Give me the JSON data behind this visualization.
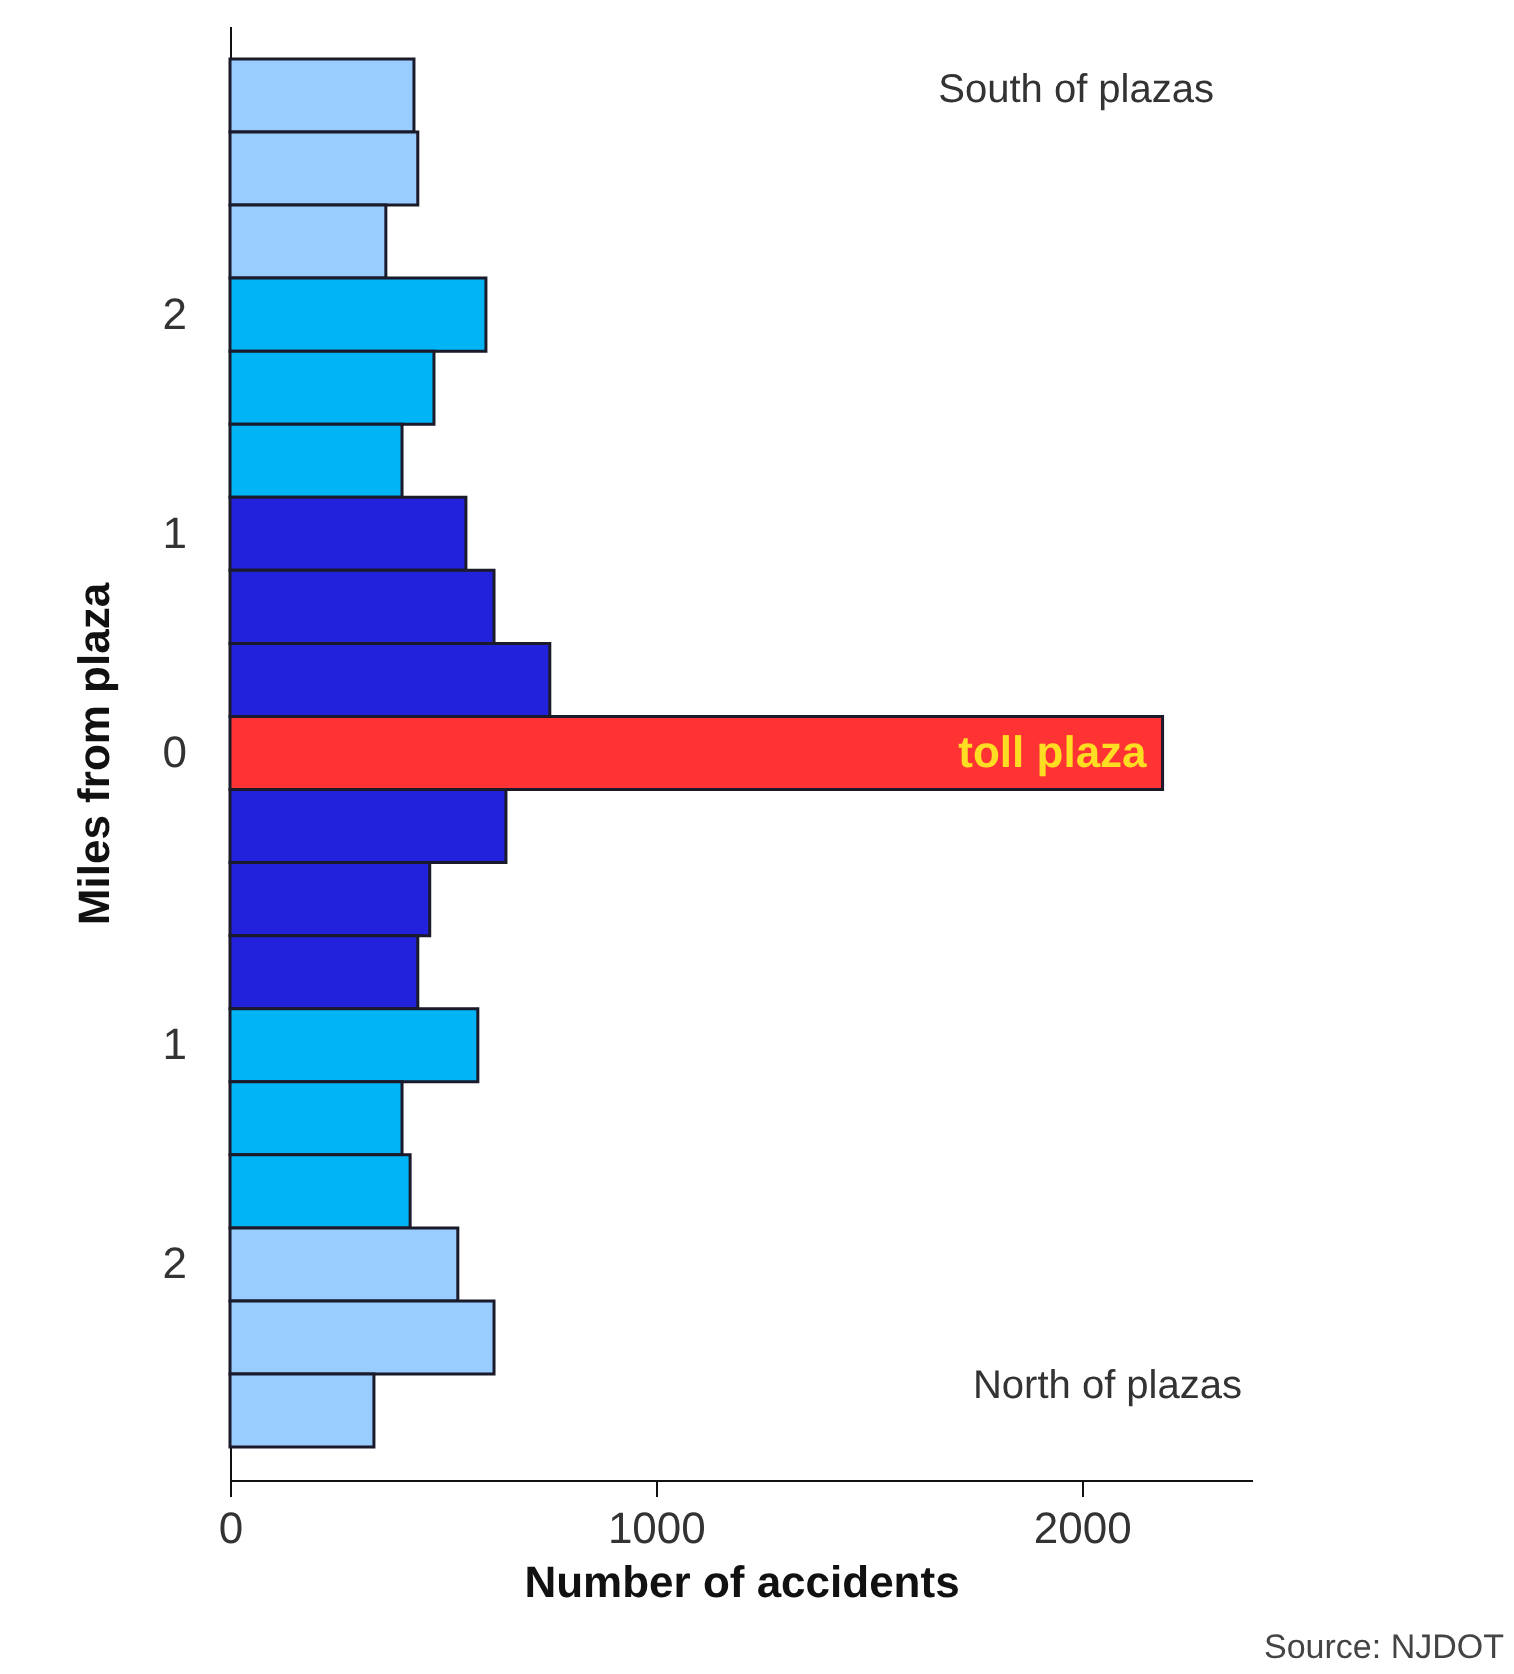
{
  "chart_data": {
    "type": "bar",
    "orientation": "horizontal",
    "xlabel": "Number of accidents",
    "ylabel": "Miles from plaza",
    "categories": [
      null,
      null,
      null,
      "2",
      null,
      null,
      "1",
      null,
      null,
      "0",
      null,
      null,
      null,
      "1",
      null,
      null,
      "2",
      null,
      null
    ],
    "values": [
      432,
      441,
      366,
      601,
      479,
      404,
      554,
      620,
      751,
      2190,
      648,
      469,
      441,
      582,
      404,
      423,
      535,
      620,
      338
    ],
    "colors": [
      "#99ccff",
      "#99ccff",
      "#99ccff",
      "#00b4f5",
      "#00b4f5",
      "#00b4f5",
      "#2222dd",
      "#2222dd",
      "#2222dd",
      "#ff3333",
      "#2222dd",
      "#2222dd",
      "#2222dd",
      "#00b4f5",
      "#00b4f5",
      "#00b4f5",
      "#99ccff",
      "#99ccff",
      "#99ccff"
    ],
    "xlim": [
      0,
      2400
    ],
    "xticks": [
      0,
      1000,
      2000
    ],
    "grid": false,
    "annotations": [
      {
        "text": "toll plaza",
        "x": 2190,
        "y": "0"
      },
      "South of plazas",
      "North of plazas",
      "Source: NJDOT"
    ]
  }
}
